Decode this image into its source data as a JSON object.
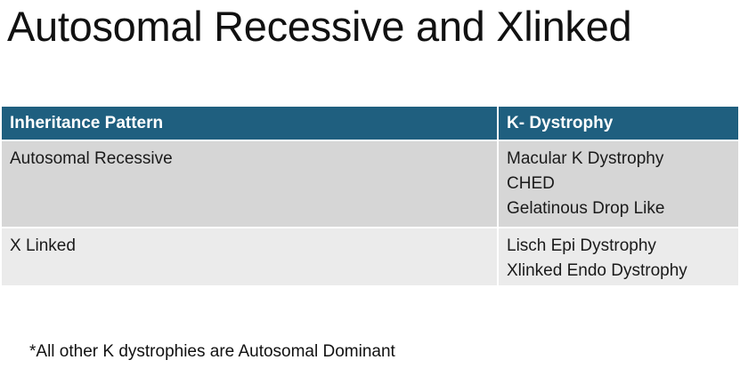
{
  "title": "Autosomal Recessive and Xlinked",
  "table": {
    "headers": [
      "Inheritance Pattern",
      "K- Dystrophy"
    ],
    "rows": [
      {
        "pattern": "Autosomal Recessive",
        "dystrophies": [
          "Macular K Dystrophy",
          "CHED",
          "Gelatinous Drop Like"
        ]
      },
      {
        "pattern": "X Linked",
        "dystrophies": [
          "Lisch Epi Dystrophy",
          "Xlinked Endo Dystrophy"
        ]
      }
    ]
  },
  "footnote": "*All other K dystrophies are Autosomal Dominant",
  "colors": {
    "header_bg": "#1f5f7f",
    "row_1_bg": "#d6d6d6",
    "row_2_bg": "#ebebeb"
  }
}
